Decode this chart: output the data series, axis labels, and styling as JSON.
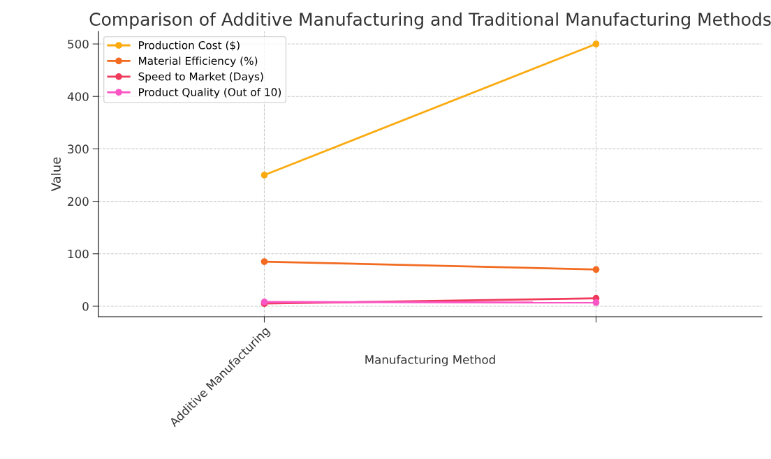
{
  "chart_data": {
    "type": "line",
    "title": "Comparison of Additive Manufacturing and Traditional Manufacturing Methods",
    "xlabel": "Manufacturing Method",
    "ylabel": "Value",
    "categories": [
      null,
      null
    ],
    "annotations": [
      "Additive Manufacturing"
    ],
    "ylim": [
      -20,
      524
    ],
    "yticks": [
      0,
      100,
      200,
      300,
      400,
      500
    ],
    "series": [
      {
        "name": "Production Cost ($)",
        "color": "#fbaa0f",
        "values": [
          250,
          500
        ]
      },
      {
        "name": "Material Efficiency (%)",
        "color": "#f26b21",
        "values": [
          85,
          70
        ]
      },
      {
        "name": "Speed to Market (Days)",
        "color": "#f03a5c",
        "values": [
          5,
          15
        ]
      },
      {
        "name": "Product Quality (Out of 10)",
        "color": "#fa55c4",
        "values": [
          8,
          7
        ]
      }
    ],
    "grid": true,
    "legend": "top left",
    "marker": "circle",
    "line_style": "solid"
  }
}
